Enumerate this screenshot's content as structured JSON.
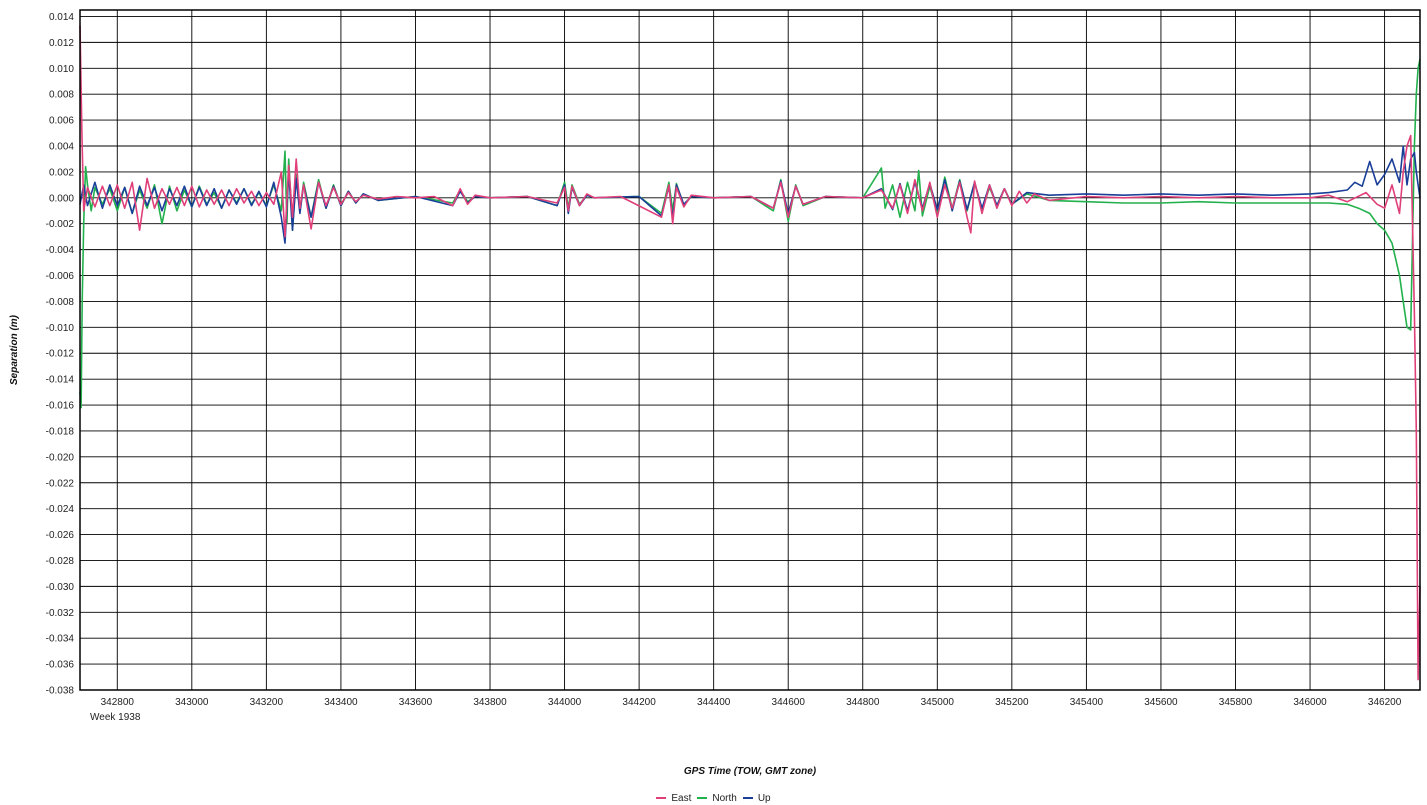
{
  "chart_data": {
    "type": "line",
    "title": "",
    "xlabel": "GPS Time (TOW, GMT zone)",
    "ylabel": "Separation (m)",
    "x_sublabel": "Week 1938",
    "xlim": [
      342700,
      346295
    ],
    "ylim": [
      -0.038,
      0.0145
    ],
    "x_ticks": [
      342800,
      343000,
      343200,
      343400,
      343600,
      343800,
      344000,
      344200,
      344400,
      344600,
      344800,
      345000,
      345200,
      345400,
      345600,
      345800,
      346000,
      346200
    ],
    "x_tick_labels": [
      "342800",
      "343000",
      "343200",
      "343400",
      "343600",
      "343800",
      "344000",
      "344200",
      "344400",
      "344600",
      "344800",
      "345000",
      "345200",
      "345400",
      "345600",
      "345800",
      "346000",
      "346200"
    ],
    "y_ticks": [
      0.014,
      0.012,
      0.01,
      0.008,
      0.006,
      0.004,
      0.002,
      0.0,
      -0.002,
      -0.004,
      -0.006,
      -0.008,
      -0.01,
      -0.012,
      -0.014,
      -0.016,
      -0.018,
      -0.02,
      -0.022,
      -0.024,
      -0.026,
      -0.028,
      -0.03,
      -0.032,
      -0.034,
      -0.036,
      -0.038
    ],
    "y_tick_labels": [
      "0.014",
      "0.012",
      "0.010",
      "0.008",
      "0.006",
      "0.004",
      "0.002",
      "0.000",
      "-0.002",
      "-0.004",
      "-0.006",
      "-0.008",
      "-0.010",
      "-0.012",
      "-0.014",
      "-0.016",
      "-0.018",
      "-0.020",
      "-0.022",
      "-0.024",
      "-0.026",
      "-0.028",
      "-0.030",
      "-0.032",
      "-0.034",
      "-0.036",
      "-0.038"
    ],
    "grid": true,
    "legend_position": "bottom-center",
    "series": [
      {
        "name": "East",
        "color": "#e0407a",
        "x": [
          342700,
          342705,
          342710,
          342720,
          342740,
          342760,
          342780,
          342800,
          342820,
          342840,
          342860,
          342880,
          342900,
          342920,
          342940,
          342960,
          342980,
          343000,
          343020,
          343040,
          343060,
          343080,
          343100,
          343120,
          343140,
          343160,
          343180,
          343200,
          343220,
          343240,
          343250,
          343260,
          343270,
          343280,
          343290,
          343300,
          343320,
          343340,
          343360,
          343380,
          343400,
          343420,
          343440,
          343460,
          343500,
          343550,
          343600,
          343650,
          343700,
          343720,
          343740,
          343760,
          343800,
          343900,
          343980,
          344000,
          344010,
          344020,
          344040,
          344060,
          344080,
          344150,
          344260,
          344280,
          344290,
          344300,
          344320,
          344340,
          344400,
          344500,
          344560,
          344580,
          344600,
          344620,
          344640,
          344700,
          344800,
          344850,
          344880,
          344900,
          344920,
          344940,
          344960,
          344980,
          345000,
          345020,
          345040,
          345060,
          345080,
          345090,
          345100,
          345120,
          345140,
          345160,
          345180,
          345200,
          345220,
          345240,
          345260,
          345300,
          345400,
          345500,
          345600,
          345700,
          345800,
          345900,
          346000,
          346050,
          346100,
          346150,
          346180,
          346200,
          346220,
          346240,
          346250,
          346260,
          346270,
          346280,
          346285,
          346290,
          346295
        ],
        "y": [
          0.0133,
          0.005,
          -0.001,
          0.0008,
          -0.0007,
          0.0009,
          -0.0006,
          0.001,
          -0.0008,
          0.0012,
          -0.0025,
          0.0015,
          -0.0008,
          0.0007,
          -0.0005,
          0.0008,
          -0.0006,
          0.0009,
          -0.0007,
          0.0006,
          -0.0005,
          0.0006,
          -0.0006,
          0.0007,
          -0.0004,
          0.0005,
          -0.0006,
          0.0004,
          -0.0005,
          0.002,
          -0.003,
          0.0025,
          -0.0015,
          0.003,
          -0.0008,
          0.001,
          -0.0024,
          0.0012,
          -0.0006,
          0.0008,
          -0.0005,
          0.0004,
          -0.0003,
          0.0002,
          -0.0001,
          0.0001,
          0.0,
          0.0001,
          -0.0006,
          0.0007,
          -0.0005,
          0.0002,
          0.0,
          0.0001,
          -0.0004,
          0.0008,
          -0.001,
          0.0009,
          -0.0006,
          0.0003,
          0.0,
          0.0001,
          -0.0015,
          0.001,
          -0.002,
          0.0008,
          -0.0007,
          0.0002,
          0.0,
          0.0001,
          -0.0008,
          0.0012,
          -0.0015,
          0.0009,
          -0.0005,
          0.0001,
          0.0,
          0.0006,
          -0.0008,
          0.001,
          -0.0012,
          0.0014,
          -0.001,
          0.0012,
          -0.0015,
          0.001,
          -0.0008,
          0.0012,
          -0.0015,
          -0.0027,
          0.0013,
          -0.0012,
          0.001,
          -0.0008,
          0.0007,
          -0.0006,
          0.0005,
          -0.0004,
          0.0003,
          -0.0002,
          0.0001,
          0.0,
          0.0001,
          0.0,
          0.0001,
          0.0,
          0.0,
          0.0002,
          -0.0003,
          0.0004,
          -0.0005,
          -0.0008,
          0.001,
          -0.0012,
          0.002,
          0.004,
          0.0048,
          -0.009,
          -0.018,
          -0.0372,
          -0.03
        ]
      },
      {
        "name": "North",
        "color": "#22b14c",
        "x": [
          342700,
          342703,
          342706,
          342710,
          342715,
          342720,
          342730,
          342740,
          342760,
          342780,
          342800,
          342820,
          342840,
          342860,
          342880,
          342900,
          342920,
          342940,
          342960,
          342980,
          343000,
          343020,
          343040,
          343060,
          343080,
          343100,
          343120,
          343140,
          343160,
          343180,
          343200,
          343220,
          343240,
          343250,
          343255,
          343260,
          343270,
          343280,
          343290,
          343300,
          343320,
          343340,
          343360,
          343380,
          343400,
          343420,
          343440,
          343460,
          343500,
          343600,
          343700,
          343720,
          343740,
          343760,
          343800,
          343900,
          343980,
          344000,
          344010,
          344020,
          344040,
          344060,
          344080,
          344200,
          344260,
          344280,
          344290,
          344300,
          344320,
          344340,
          344400,
          344500,
          344560,
          344580,
          344600,
          344620,
          344640,
          344700,
          344800,
          344850,
          344860,
          344880,
          344900,
          344920,
          344940,
          344950,
          344960,
          344980,
          345000,
          345020,
          345040,
          345060,
          345080,
          345100,
          345120,
          345140,
          345160,
          345180,
          345200,
          345240,
          345300,
          345400,
          345500,
          345600,
          345700,
          345800,
          345900,
          346000,
          346050,
          346100,
          346130,
          346160,
          346180,
          346200,
          346220,
          346240,
          346250,
          346260,
          346270,
          346280,
          346285,
          346290,
          346295
        ],
        "y": [
          -0.015,
          -0.0162,
          -0.008,
          -0.002,
          0.0024,
          0.001,
          -0.001,
          0.0008,
          -0.0005,
          0.0007,
          -0.001,
          0.0008,
          -0.0012,
          0.0006,
          -0.0008,
          0.001,
          -0.002,
          0.0009,
          -0.001,
          0.0006,
          -0.0007,
          0.0009,
          -0.0005,
          0.0004,
          -0.0008,
          0.0006,
          -0.0004,
          0.0007,
          -0.0005,
          0.0004,
          -0.0006,
          0.001,
          -0.001,
          0.0036,
          -0.002,
          0.003,
          -0.0025,
          0.0018,
          -0.001,
          0.0012,
          -0.0015,
          0.0014,
          -0.0008,
          0.001,
          -0.0006,
          0.0005,
          -0.0004,
          0.0003,
          -0.0002,
          0.0001,
          -0.0004,
          0.0006,
          -0.0003,
          0.0001,
          0.0,
          0.0001,
          -0.0006,
          0.0012,
          -0.0008,
          0.001,
          -0.0005,
          0.0002,
          0.0,
          0.0001,
          -0.0012,
          0.0012,
          -0.001,
          0.0011,
          -0.0006,
          0.0001,
          0.0,
          0.0001,
          -0.001,
          0.0014,
          -0.0018,
          0.001,
          -0.0006,
          0.0001,
          0.0,
          0.0023,
          -0.0008,
          0.001,
          -0.0015,
          0.0012,
          -0.001,
          0.0021,
          -0.0014,
          0.0009,
          -0.0012,
          0.0016,
          -0.0008,
          0.0014,
          -0.001,
          0.0012,
          -0.001,
          0.0008,
          -0.0006,
          0.0007,
          -0.0005,
          0.0003,
          -0.0002,
          -0.0003,
          -0.0004,
          -0.0004,
          -0.0003,
          -0.0004,
          -0.0004,
          -0.0004,
          -0.0004,
          -0.0005,
          -0.0008,
          -0.0012,
          -0.002,
          -0.0025,
          -0.0035,
          -0.006,
          -0.008,
          -0.01,
          -0.0102,
          0.004,
          0.008,
          0.01,
          0.0107
        ]
      },
      {
        "name": "Up",
        "color": "#1a3f99",
        "x": [
          342700,
          342710,
          342720,
          342740,
          342760,
          342780,
          342800,
          342820,
          342840,
          342860,
          342880,
          342900,
          342920,
          342940,
          342960,
          342980,
          343000,
          343020,
          343040,
          343060,
          343080,
          343100,
          343120,
          343140,
          343160,
          343180,
          343200,
          343220,
          343240,
          343250,
          343260,
          343270,
          343280,
          343290,
          343300,
          343320,
          343340,
          343360,
          343380,
          343400,
          343420,
          343440,
          343460,
          343500,
          343600,
          343700,
          343720,
          343740,
          343760,
          343800,
          343900,
          343980,
          344000,
          344010,
          344020,
          344040,
          344060,
          344080,
          344200,
          344260,
          344280,
          344290,
          344300,
          344320,
          344340,
          344400,
          344500,
          344560,
          344580,
          344600,
          344620,
          344640,
          344700,
          344800,
          344850,
          344880,
          344900,
          344920,
          344940,
          344960,
          344980,
          345000,
          345020,
          345040,
          345060,
          345080,
          345100,
          345120,
          345140,
          345160,
          345180,
          345200,
          345240,
          345300,
          345400,
          345500,
          345600,
          345700,
          345800,
          345900,
          346000,
          346050,
          346100,
          346120,
          346140,
          346160,
          346180,
          346200,
          346220,
          346240,
          346250,
          346260,
          346270,
          346280,
          346285,
          346290,
          346295
        ],
        "y": [
          -0.0005,
          0.001,
          -0.0006,
          0.0012,
          -0.0008,
          0.001,
          -0.0006,
          0.0008,
          -0.0012,
          0.0009,
          -0.0006,
          0.0008,
          -0.001,
          0.0007,
          -0.0006,
          0.0009,
          -0.0007,
          0.0008,
          -0.0006,
          0.0007,
          -0.0008,
          0.0006,
          -0.0005,
          0.0007,
          -0.0006,
          0.0005,
          -0.0007,
          0.0012,
          -0.0015,
          -0.0035,
          0.002,
          -0.0025,
          0.0015,
          -0.0012,
          0.001,
          -0.0015,
          0.0012,
          -0.0008,
          0.0009,
          -0.0006,
          0.0005,
          -0.0004,
          0.0003,
          -0.0002,
          0.0001,
          -0.0006,
          0.0005,
          -0.0004,
          0.0001,
          0.0,
          0.0001,
          -0.0006,
          0.001,
          -0.0012,
          0.0008,
          -0.0006,
          0.0002,
          0.0,
          0.0001,
          -0.0014,
          0.0009,
          -0.0016,
          0.001,
          -0.0005,
          0.0001,
          0.0,
          0.0001,
          -0.0008,
          0.0013,
          -0.0012,
          0.0009,
          -0.0005,
          0.0001,
          0.0,
          0.0007,
          -0.0009,
          0.0011,
          -0.001,
          0.0012,
          -0.0008,
          0.0011,
          -0.0009,
          0.0014,
          -0.001,
          0.0013,
          -0.0009,
          0.0012,
          -0.0008,
          0.001,
          -0.0006,
          0.0007,
          -0.0005,
          0.0004,
          0.0002,
          0.0003,
          0.0002,
          0.0003,
          0.0002,
          0.0003,
          0.0002,
          0.0003,
          0.0004,
          0.0006,
          0.0012,
          0.0009,
          0.0028,
          0.001,
          0.0018,
          0.003,
          0.0012,
          0.004,
          0.001,
          0.003,
          0.0035,
          0.002,
          0.001,
          0.0
        ]
      }
    ]
  }
}
